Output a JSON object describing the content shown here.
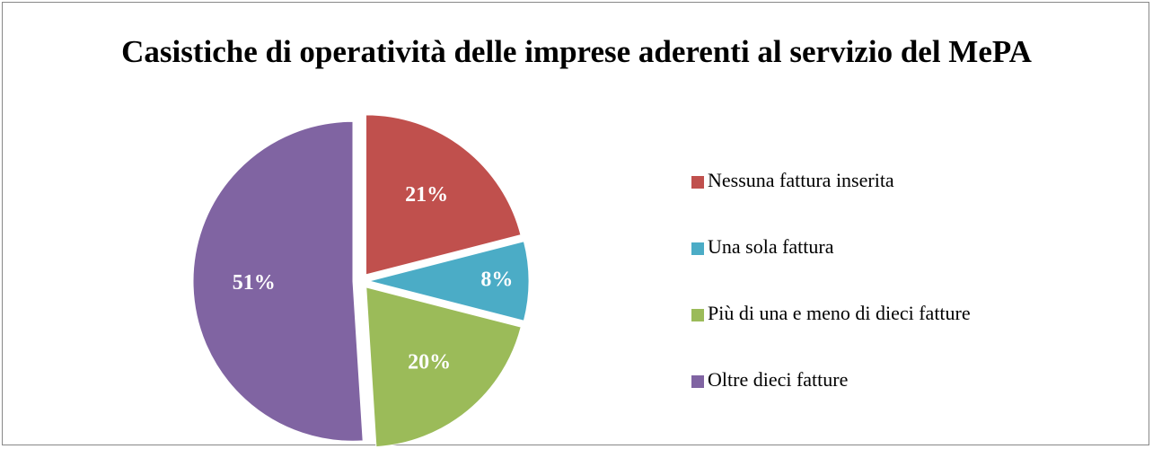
{
  "chart_data": {
    "type": "pie",
    "title": "Casistiche di operatività delle imprese aderenti al servizio del MePA",
    "categories": [
      "Nessuna fattura inserita",
      "Una sola fattura",
      "Più di una e meno di dieci fatture",
      "Oltre dieci fatture"
    ],
    "values": [
      21,
      8,
      20,
      51
    ],
    "value_labels": [
      "21%",
      "8%",
      "20%",
      "51%"
    ],
    "colors": [
      "#c0504d",
      "#4bacc6",
      "#9bbb59",
      "#8064a2"
    ],
    "legend": "right"
  }
}
